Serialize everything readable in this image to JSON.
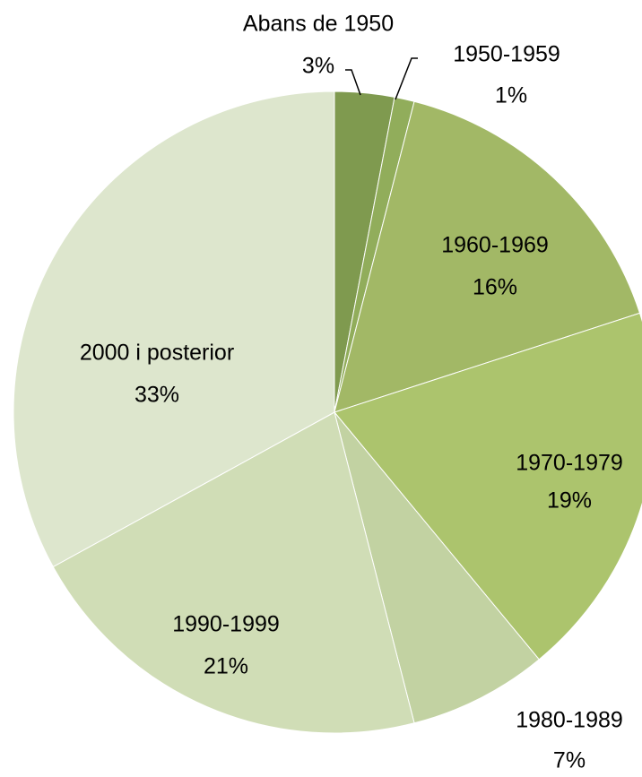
{
  "chart_data": {
    "type": "pie",
    "categories": [
      "Abans de 1950",
      "1950-1959",
      "1960-1969",
      "1970-1979",
      "1980-1989",
      "1990-1999",
      "2000 i posterior"
    ],
    "values": [
      3,
      1,
      16,
      19,
      7,
      21,
      33
    ],
    "value_labels": [
      "3%",
      "1%",
      "16%",
      "19%",
      "7%",
      "21%",
      "33%"
    ],
    "colors": [
      "#7f9a4f",
      "#91ad5b",
      "#a2b866",
      "#acc46d",
      "#c2d2a2",
      "#d0ddb6",
      "#dde6cd"
    ]
  }
}
